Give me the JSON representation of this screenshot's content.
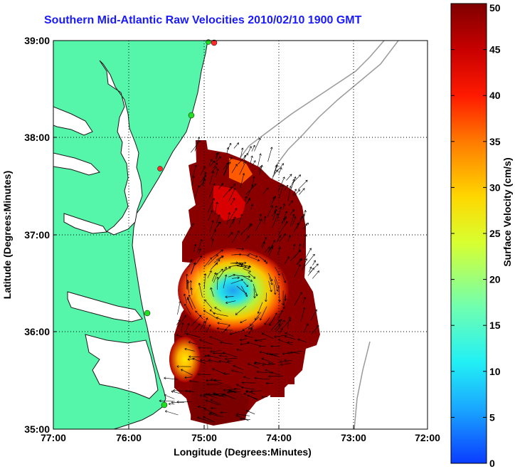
{
  "chart_data": {
    "type": "heatmap",
    "title": "Southern Mid-Atlantic Raw Velocities 2010/02/10 1900 GMT",
    "xlabel": "Longitude (Degrees:Minutes)",
    "ylabel": "Latitude (Degrees:Minutes)",
    "x_ticks": [
      "77:00",
      "76:00",
      "75:00",
      "74:00",
      "73:00",
      "72:00"
    ],
    "y_ticks": [
      "39:00",
      "38:00",
      "37:00",
      "36:00",
      "35:00"
    ],
    "xlim": [
      -77,
      -72
    ],
    "ylim": [
      35,
      39
    ],
    "grid": true,
    "colorbar": {
      "label": "Surface Velocity (cm/s)",
      "ticks": [
        "0",
        "5",
        "10",
        "15",
        "20",
        "25",
        "30",
        "35",
        "40",
        "45",
        "50"
      ],
      "range": [
        0,
        50
      ]
    },
    "colors": {
      "land": "#55f5aa",
      "title": "#1a1aff",
      "bathymetry": "#9a9a9a",
      "station": "#22dd22",
      "station_alt": "#ff2a2a"
    }
  }
}
